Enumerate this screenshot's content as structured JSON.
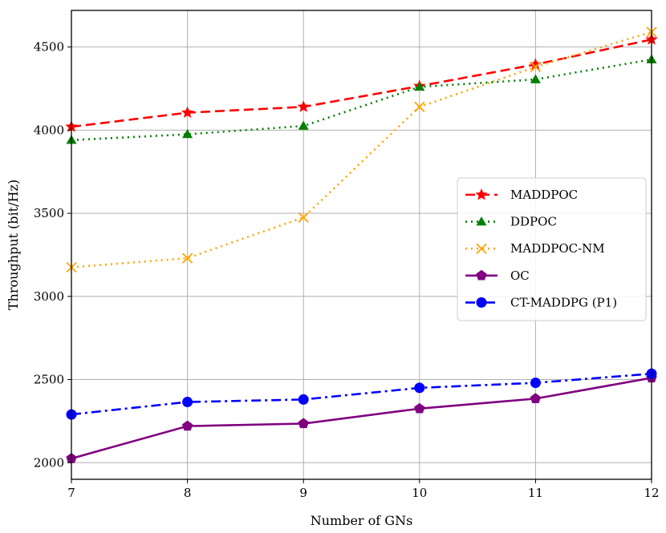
{
  "chart_data": {
    "type": "line",
    "title": "",
    "xlabel": "Number of GNs",
    "ylabel": "Throughput (bit/Hz)",
    "x": [
      7,
      8,
      9,
      10,
      11,
      12
    ],
    "xlim": [
      7,
      12
    ],
    "ylim": [
      1900,
      4720
    ],
    "xticks": [
      "7",
      "8",
      "9",
      "10",
      "11",
      "12"
    ],
    "yticks": [
      2000,
      2500,
      3000,
      3500,
      4000,
      4500
    ],
    "ytick_labels": [
      "2000",
      "2500",
      "3000",
      "3500",
      "4000",
      "4500"
    ],
    "grid": true,
    "legend_position": "center-right",
    "series": [
      {
        "name": "MADDPOC",
        "color": "#ff0000",
        "linestyle": "dashed",
        "marker": "star",
        "values": [
          4020,
          4105,
          4140,
          4265,
          4395,
          4545
        ]
      },
      {
        "name": "DDPOC",
        "color": "#008000",
        "linestyle": "dotted",
        "marker": "triangle",
        "values": [
          3940,
          3975,
          4025,
          4260,
          4305,
          4425
        ]
      },
      {
        "name": "MADDPOC-NM",
        "color": "#ffa500",
        "linestyle": "dotted",
        "marker": "x",
        "values": [
          3175,
          3230,
          3475,
          4140,
          4380,
          4590
        ]
      },
      {
        "name": "OC",
        "color": "#800080",
        "linestyle": "solid",
        "marker": "pentagon",
        "values": [
          2025,
          2220,
          2235,
          2325,
          2385,
          2510
        ]
      },
      {
        "name": "CT-MADDPG (P1)",
        "color": "#0000ff",
        "linestyle": "dashdot",
        "marker": "circle",
        "values": [
          2290,
          2365,
          2380,
          2450,
          2480,
          2535
        ]
      }
    ]
  }
}
